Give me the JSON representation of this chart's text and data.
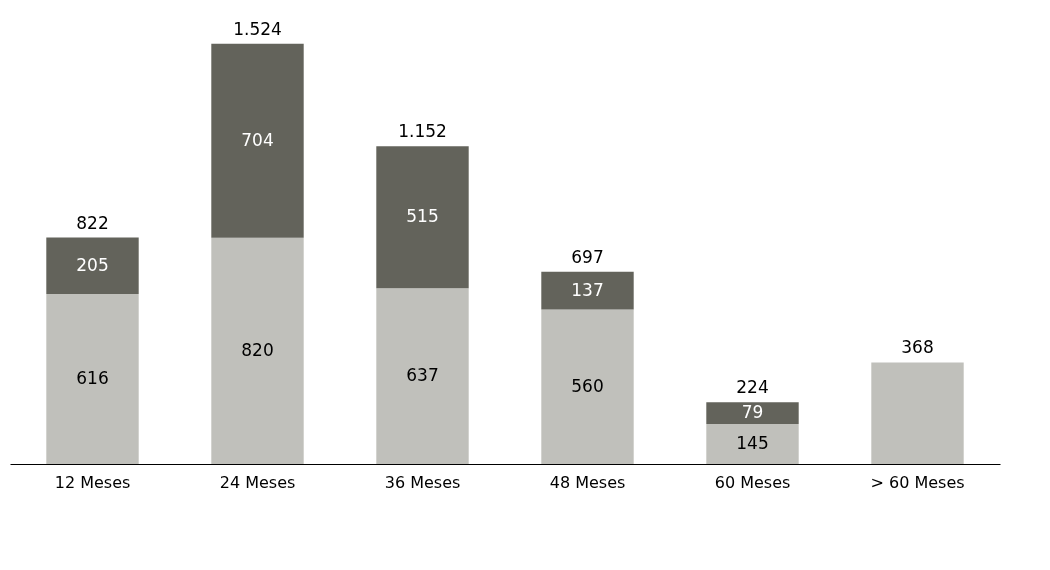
{
  "chart_data": {
    "type": "bar",
    "stacked": true,
    "categories": [
      "12 Meses",
      "24 Meses",
      "36 Meses",
      "48 Meses",
      "60 Meses",
      "> 60 Meses"
    ],
    "series": [
      {
        "color": "#c0c0bb",
        "values": [
          616,
          820,
          637,
          560,
          145,
          368
        ],
        "value_labels": [
          "616",
          "820",
          "637",
          "560",
          "145",
          null
        ]
      },
      {
        "color": "#63635b",
        "values": [
          205,
          704,
          515,
          137,
          79,
          null
        ],
        "value_labels": [
          "205",
          "704",
          "515",
          "137",
          "79",
          null
        ]
      }
    ],
    "totals": [
      "822",
      "1.524",
      "1.152",
      "697",
      "224",
      "368"
    ],
    "grid": false,
    "tick_labels": "x"
  }
}
